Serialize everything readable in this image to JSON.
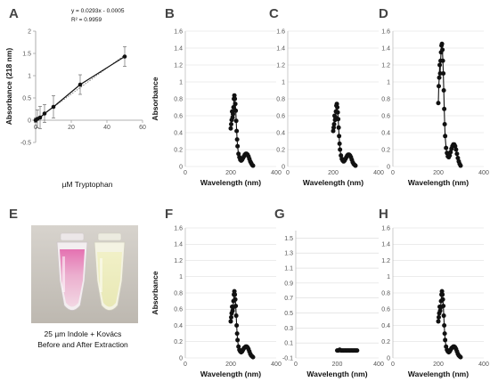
{
  "chart_data": [
    {
      "id": "A",
      "panel_label": "A",
      "type": "scatter",
      "ylabel": "Absorbance (218 nm)",
      "xlabel": "µM Tryptophan",
      "equation": "y = 0.0293x - 0.0005",
      "r_squared": "R² = 0.9959",
      "xlim": [
        -2,
        60
      ],
      "ylim": [
        -0.5,
        2
      ],
      "xticks": [
        0,
        20,
        40,
        60
      ],
      "xtick_labels": [
        "0",
        "20",
        "40",
        "60"
      ],
      "yticks": [
        -0.5,
        0,
        0.5,
        1,
        1.5,
        2
      ],
      "ytick_labels": [
        "-0.5",
        "0",
        "0.5",
        "1",
        "1.5",
        "2"
      ],
      "grid": false,
      "trendline": true,
      "x": [
        0,
        1,
        2.5,
        5,
        10,
        25,
        50
      ],
      "values": [
        0.0,
        0.03,
        0.06,
        0.15,
        0.3,
        0.8,
        1.43
      ],
      "error": [
        0.05,
        0.2,
        0.25,
        0.2,
        0.25,
        0.22,
        0.22
      ]
    },
    {
      "id": "B",
      "panel_label": "B",
      "type": "line",
      "ylabel": "Absorbance",
      "xlabel": "Wavelength (nm)",
      "xlim": [
        0,
        400
      ],
      "ylim": [
        0,
        1.6
      ],
      "xticks": [
        0,
        200,
        400
      ],
      "xtick_labels": [
        "0",
        "200",
        "400"
      ],
      "yticks": [
        0,
        0.2,
        0.4,
        0.6,
        0.8,
        1,
        1.2,
        1.4,
        1.6
      ],
      "ytick_labels": [
        "0",
        "0.2",
        "0.4",
        "0.6",
        "0.8",
        "1",
        "1.2",
        "1.4",
        "1.6"
      ],
      "grid": true,
      "series": [
        {
          "x": [
            200,
            202,
            204,
            206,
            208,
            210,
            212,
            214,
            216,
            218,
            220,
            222,
            224,
            226,
            228,
            230,
            234,
            238,
            242,
            246,
            250,
            254,
            258,
            262,
            266,
            270,
            274,
            278,
            282,
            286,
            290,
            294,
            298
          ],
          "values": [
            0.45,
            0.5,
            0.55,
            0.65,
            0.58,
            0.62,
            0.7,
            0.8,
            0.84,
            0.8,
            0.74,
            0.66,
            0.54,
            0.42,
            0.32,
            0.24,
            0.15,
            0.11,
            0.08,
            0.07,
            0.08,
            0.1,
            0.12,
            0.14,
            0.15,
            0.15,
            0.14,
            0.12,
            0.09,
            0.06,
            0.04,
            0.02,
            0.01
          ]
        }
      ]
    },
    {
      "id": "C",
      "panel_label": "C",
      "type": "line",
      "ylabel": "",
      "xlabel": "Wavelength (nm)",
      "xlim": [
        0,
        400
      ],
      "ylim": [
        0,
        1.6
      ],
      "xticks": [
        0,
        200,
        400
      ],
      "xtick_labels": [
        "0",
        "200",
        "400"
      ],
      "yticks": [
        0,
        0.2,
        0.4,
        0.6,
        0.8,
        1,
        1.2,
        1.4,
        1.6
      ],
      "ytick_labels": [
        "0",
        "0.2",
        "0.4",
        "0.6",
        "0.8",
        "1",
        "1.2",
        "1.4",
        "1.6"
      ],
      "grid": true,
      "series": [
        {
          "x": [
            200,
            202,
            204,
            206,
            208,
            210,
            212,
            214,
            216,
            218,
            220,
            222,
            224,
            226,
            228,
            230,
            234,
            238,
            242,
            246,
            250,
            254,
            258,
            262,
            266,
            270,
            274,
            278,
            282,
            286,
            290,
            294,
            298
          ],
          "values": [
            0.42,
            0.46,
            0.5,
            0.6,
            0.55,
            0.58,
            0.65,
            0.72,
            0.74,
            0.7,
            0.64,
            0.56,
            0.46,
            0.36,
            0.27,
            0.2,
            0.13,
            0.09,
            0.07,
            0.06,
            0.07,
            0.09,
            0.11,
            0.13,
            0.14,
            0.14,
            0.13,
            0.11,
            0.08,
            0.05,
            0.03,
            0.02,
            0.01
          ]
        }
      ]
    },
    {
      "id": "D",
      "panel_label": "D",
      "type": "line",
      "ylabel": "",
      "xlabel": "Wavelength (nm)",
      "xlim": [
        0,
        400
      ],
      "ylim": [
        0,
        1.6
      ],
      "xticks": [
        0,
        200,
        400
      ],
      "xtick_labels": [
        "0",
        "200",
        "400"
      ],
      "yticks": [
        0,
        0.2,
        0.4,
        0.6,
        0.8,
        1,
        1.2,
        1.4,
        1.6
      ],
      "ytick_labels": [
        "0",
        "0.2",
        "0.4",
        "0.6",
        "0.8",
        "1",
        "1.2",
        "1.4",
        "1.6"
      ],
      "grid": true,
      "series": [
        {
          "x": [
            200,
            202,
            204,
            206,
            208,
            210,
            212,
            214,
            216,
            218,
            220,
            222,
            224,
            226,
            228,
            230,
            234,
            238,
            242,
            246,
            250,
            254,
            258,
            262,
            266,
            270,
            274,
            278,
            282,
            286,
            290,
            294,
            298
          ],
          "values": [
            0.75,
            0.95,
            1.05,
            1.2,
            1.1,
            1.25,
            1.35,
            1.43,
            1.45,
            1.38,
            1.25,
            1.1,
            0.9,
            0.68,
            0.5,
            0.36,
            0.22,
            0.16,
            0.12,
            0.11,
            0.13,
            0.17,
            0.21,
            0.24,
            0.26,
            0.26,
            0.24,
            0.2,
            0.15,
            0.1,
            0.06,
            0.03,
            0.01
          ]
        }
      ]
    },
    {
      "id": "F",
      "panel_label": "F",
      "type": "line",
      "ylabel": "Absorbance",
      "xlabel": "Wavelength (nm)",
      "xlim": [
        0,
        400
      ],
      "ylim": [
        0,
        1.6
      ],
      "xticks": [
        0,
        200,
        400
      ],
      "xtick_labels": [
        "0",
        "200",
        "400"
      ],
      "yticks": [
        0,
        0.2,
        0.4,
        0.6,
        0.8,
        1,
        1.2,
        1.4,
        1.6
      ],
      "ytick_labels": [
        "0",
        "0.2",
        "0.4",
        "0.6",
        "0.8",
        "1",
        "1.2",
        "1.4",
        "1.6"
      ],
      "grid": true,
      "series": [
        {
          "x": [
            200,
            202,
            204,
            206,
            208,
            210,
            212,
            214,
            216,
            218,
            220,
            222,
            224,
            226,
            228,
            230,
            234,
            238,
            242,
            246,
            250,
            254,
            258,
            262,
            266,
            270,
            274,
            278,
            282,
            286,
            290,
            294,
            298
          ],
          "values": [
            0.45,
            0.5,
            0.55,
            0.63,
            0.58,
            0.62,
            0.7,
            0.78,
            0.82,
            0.78,
            0.72,
            0.64,
            0.52,
            0.4,
            0.3,
            0.22,
            0.14,
            0.1,
            0.08,
            0.07,
            0.08,
            0.1,
            0.12,
            0.13,
            0.14,
            0.14,
            0.13,
            0.11,
            0.08,
            0.05,
            0.03,
            0.02,
            0.01
          ]
        }
      ]
    },
    {
      "id": "G",
      "panel_label": "G",
      "type": "line",
      "ylabel": "",
      "xlabel": "Wavelength (nm)",
      "xlim": [
        0,
        400
      ],
      "ylim": [
        -0.1,
        1.6
      ],
      "xticks": [
        0,
        200,
        400
      ],
      "xtick_labels": [
        "0",
        "200",
        "400"
      ],
      "yticks": [
        -0.1,
        0.1,
        0.3,
        0.5,
        0.7,
        0.9,
        1.1,
        1.3,
        1.5
      ],
      "ytick_labels": [
        "-0.1",
        "0.1",
        "0.3",
        "0.5",
        "0.7",
        "0.9",
        "1.1",
        "1.3",
        "1.5"
      ],
      "grid": true,
      "series": [
        {
          "x": [
            200,
            206,
            212,
            218,
            224,
            230,
            236,
            242,
            248,
            254,
            260,
            266,
            272,
            278,
            284,
            290,
            296
          ],
          "values": [
            0.0,
            0.0,
            0.01,
            0.0,
            0.0,
            0.0,
            0.0,
            0.0,
            0.0,
            0.0,
            0.0,
            0.0,
            0.0,
            0.0,
            0.0,
            0.0,
            0.0
          ]
        }
      ]
    },
    {
      "id": "H",
      "panel_label": "H",
      "type": "line",
      "ylabel": "",
      "xlabel": "Wavelength (nm)",
      "xlim": [
        0,
        400
      ],
      "ylim": [
        0,
        1.6
      ],
      "xticks": [
        0,
        200,
        400
      ],
      "xtick_labels": [
        "0",
        "200",
        "400"
      ],
      "yticks": [
        0,
        0.2,
        0.4,
        0.6,
        0.8,
        1,
        1.2,
        1.4,
        1.6
      ],
      "ytick_labels": [
        "0",
        "0.2",
        "0.4",
        "0.6",
        "0.8",
        "1",
        "1.2",
        "1.4",
        "1.6"
      ],
      "grid": true,
      "series": [
        {
          "x": [
            200,
            202,
            204,
            206,
            208,
            210,
            212,
            214,
            216,
            218,
            220,
            222,
            224,
            226,
            228,
            230,
            234,
            238,
            242,
            246,
            250,
            254,
            258,
            262,
            266,
            270,
            274,
            278,
            282,
            286,
            290,
            294,
            298
          ],
          "values": [
            0.45,
            0.5,
            0.55,
            0.63,
            0.58,
            0.62,
            0.7,
            0.78,
            0.82,
            0.78,
            0.72,
            0.64,
            0.52,
            0.4,
            0.3,
            0.22,
            0.14,
            0.1,
            0.08,
            0.07,
            0.08,
            0.1,
            0.12,
            0.13,
            0.14,
            0.14,
            0.13,
            0.11,
            0.08,
            0.05,
            0.03,
            0.02,
            0.01
          ]
        }
      ]
    }
  ],
  "photo_panel": {
    "panel_label": "E",
    "caption_line1": "25 µm Indole + Kovács",
    "caption_line2": "Before and After Extraction"
  }
}
